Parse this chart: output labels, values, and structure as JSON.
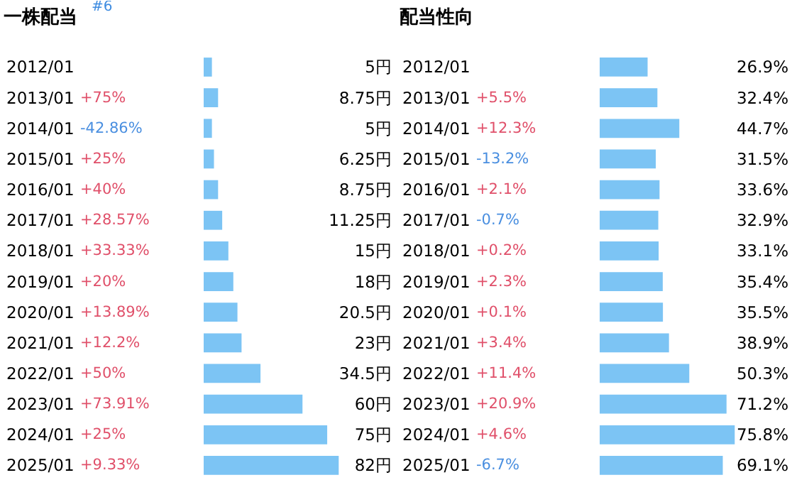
{
  "chart_data": [
    {
      "type": "bar",
      "orientation": "horizontal",
      "title": "一株配当",
      "annotations": [
        "#6"
      ],
      "categories": [
        "2012/01",
        "2013/01 +75%",
        "2014/01 -42.86%",
        "2015/01 +25%",
        "2016/01 +40%",
        "2017/01 +28.57%",
        "2018/01 +33.33%",
        "2019/01 +20%",
        "2020/01 +13.89%",
        "2021/01 +12.2%",
        "2022/01 +50%",
        "2023/01 +73.91%",
        "2024/01 +25%",
        "2025/01 +9.33%"
      ],
      "values": [
        5,
        8.75,
        5,
        6.25,
        8.75,
        11.25,
        15,
        18,
        20.5,
        23,
        34.5,
        60,
        75,
        82
      ],
      "value_labels": [
        "5円",
        "8.75円",
        "5円",
        "6.25円",
        "8.75円",
        "11.25円",
        "15円",
        "18円",
        "20.5円",
        "23円",
        "34.5円",
        "60円",
        "75円",
        "82円"
      ],
      "color": "#7cc4f4",
      "tick_labels": "y"
    },
    {
      "type": "bar",
      "orientation": "horizontal",
      "title": "配当性向",
      "categories": [
        "2012/01",
        "2013/01 +5.5%",
        "2014/01 +12.3%",
        "2015/01 -13.2%",
        "2016/01 +2.1%",
        "2017/01 -0.7%",
        "2018/01 +0.2%",
        "2019/01 +2.3%",
        "2020/01 +0.1%",
        "2021/01 +3.4%",
        "2022/01 +11.4%",
        "2023/01 +20.9%",
        "2024/01 +4.6%",
        "2025/01 -6.7%"
      ],
      "values": [
        26.9,
        32.4,
        44.7,
        31.5,
        33.6,
        32.9,
        33.1,
        35.4,
        35.5,
        38.9,
        50.3,
        71.2,
        75.8,
        69.1
      ],
      "value_labels": [
        "26.9%",
        "32.4%",
        "44.7%",
        "31.5%",
        "33.6%",
        "32.9%",
        "33.1%",
        "35.4%",
        "35.5%",
        "38.9%",
        "50.3%",
        "71.2%",
        "75.8%",
        "69.1%"
      ],
      "color": "#7cc4f4",
      "tick_labels": "y"
    }
  ]
}
